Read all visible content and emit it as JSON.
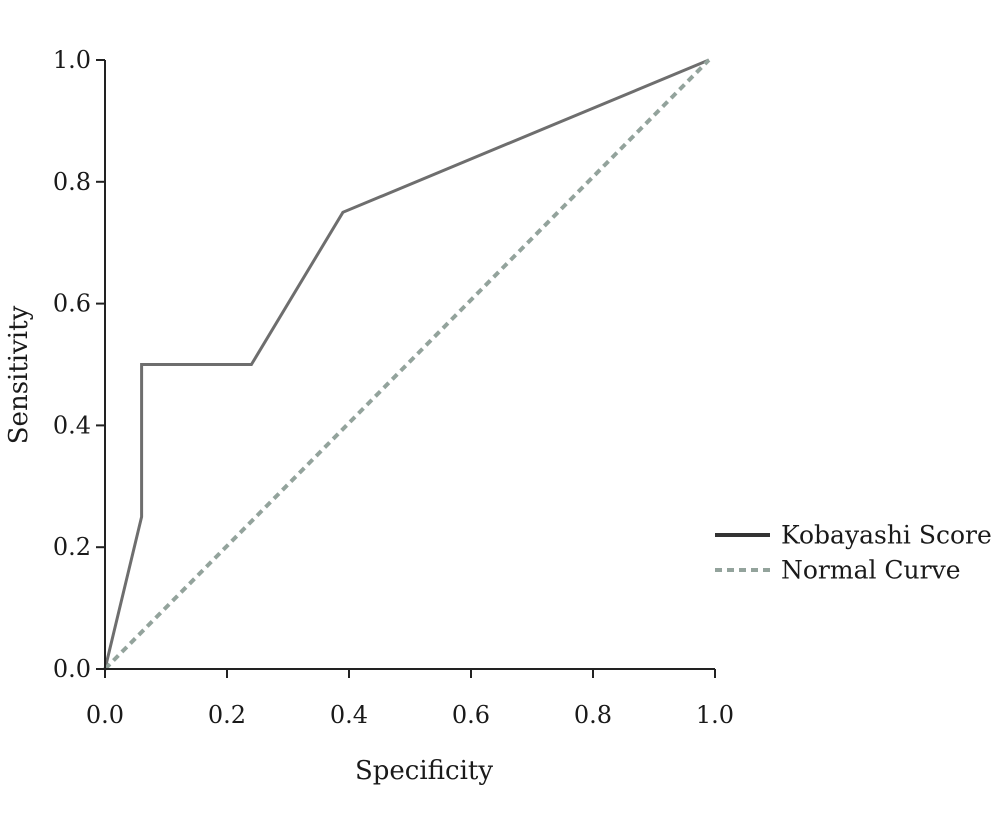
{
  "chart_data": {
    "type": "line",
    "xlabel": "Specificity",
    "ylabel": "Sensitivity",
    "xlim": [
      0.0,
      1.0
    ],
    "ylim": [
      0.0,
      1.0
    ],
    "x_ticks": [
      "0.0",
      "0.2",
      "0.4",
      "0.6",
      "0.8",
      "1.0"
    ],
    "y_ticks": [
      "0.0",
      "0.2",
      "0.4",
      "0.6",
      "0.8",
      "1.0"
    ],
    "grid": false,
    "legend_position": "right",
    "series": [
      {
        "name": "Kobayashi Score",
        "style": "solid",
        "color": "#6e6e6e",
        "legend_color": "#333333",
        "points": [
          [
            0.0,
            0.0
          ],
          [
            0.06,
            0.25
          ],
          [
            0.06,
            0.5
          ],
          [
            0.24,
            0.5
          ],
          [
            0.39,
            0.75
          ],
          [
            0.99,
            1.0
          ]
        ]
      },
      {
        "name": "Normal Curve",
        "style": "dashed",
        "color": "#93a39c",
        "legend_color": "#93a39c",
        "points": [
          [
            0.0,
            0.0
          ],
          [
            0.99,
            1.0
          ]
        ]
      }
    ]
  }
}
